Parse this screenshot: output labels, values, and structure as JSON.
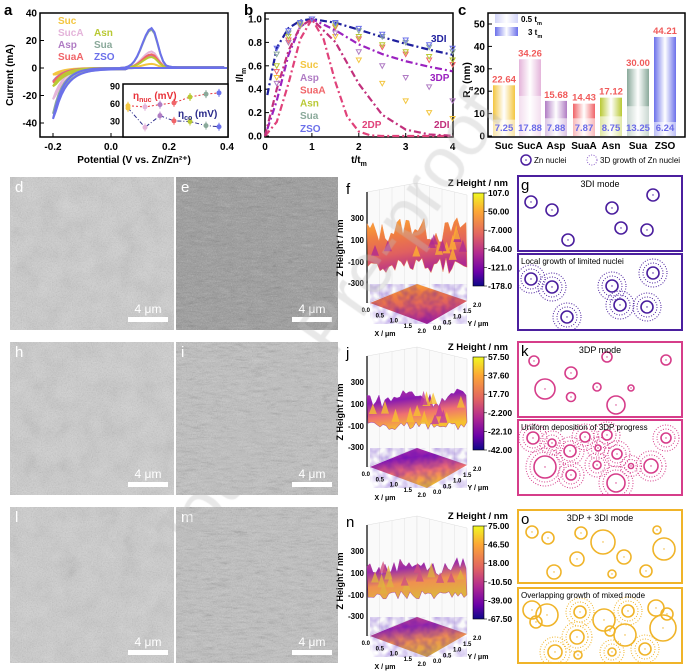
{
  "watermark": "Journal Pre-proof",
  "panel_labels": {
    "a": "a",
    "b": "b",
    "c": "c",
    "d": "d",
    "e": "e",
    "f": "f",
    "g": "g",
    "h": "h",
    "i": "i",
    "j": "j",
    "k": "k",
    "l": "l",
    "m": "m",
    "n": "n",
    "o": "o"
  },
  "colors": {
    "Suc": "#f3c640",
    "SucA": "#e4b4da",
    "Asp": "#b07cc4",
    "SuaA": "#f06468",
    "Asn": "#b9c934",
    "Sua": "#8aa99a",
    "ZSO": "#6b70ea",
    "value_top": "#f05a5a",
    "value_bottom": "#6a6ae8",
    "g": "#4b1f9e",
    "k": "#d63d8a",
    "o": "#f0b429"
  },
  "chart_data": [
    {
      "panel": "a",
      "type": "line",
      "xlabel": "Potential (V vs. Zn/Zn²⁺)",
      "ylabel": "Current (mA)",
      "xlim": [
        -0.25,
        0.4
      ],
      "ylim": [
        -50,
        40
      ],
      "xticks": [
        "-0.2",
        "0.0",
        "0.2",
        "0.4"
      ],
      "xtick_values": [
        -0.2,
        0,
        0.2,
        0.4
      ],
      "yticks": [
        "40",
        "20",
        "0",
        "-20",
        "-40"
      ],
      "ytick_values": [
        40,
        20,
        0,
        -20,
        -40
      ],
      "series": [
        {
          "name": "Suc",
          "anodic_peak_mA": 3,
          "current_at_minus_0_2V_mA": -5
        },
        {
          "name": "SucA",
          "anodic_peak_mA": 12,
          "current_at_minus_0_2V_mA": -24
        },
        {
          "name": "Asp",
          "anodic_peak_mA": 9,
          "current_at_minus_0_2V_mA": -10
        },
        {
          "name": "SuaA",
          "anodic_peak_mA": 10,
          "current_at_minus_0_2V_mA": -11
        },
        {
          "name": "Asn",
          "anodic_peak_mA": 8,
          "current_at_minus_0_2V_mA": -14
        },
        {
          "name": "Sua",
          "anodic_peak_mA": 28,
          "current_at_minus_0_2V_mA": -35
        },
        {
          "name": "ZSO",
          "anodic_peak_mA": 29,
          "current_at_minus_0_2V_mA": -39
        }
      ]
    },
    {
      "panel": "a-inset",
      "type": "line",
      "categories": [
        "Suc",
        "SucA",
        "Asp",
        "SuaA",
        "Asn",
        "Sua",
        "ZSO"
      ],
      "ylim": [
        15,
        95
      ],
      "yticks": [
        "30",
        "60",
        "90"
      ],
      "ytick_values": [
        30,
        60,
        90
      ],
      "series": [
        {
          "symbol": "η",
          "sub": "nuc",
          "unit": " (mV)",
          "color": "#e8323a",
          "values": [
            57,
            55,
            59,
            62,
            72,
            77,
            79
          ]
        },
        {
          "symbol": "η",
          "sub": "co",
          "unit": " (mV)",
          "color": "#2a2a8a",
          "values": [
            53,
            20,
            40,
            31,
            30,
            23,
            21
          ]
        }
      ]
    },
    {
      "panel": "b",
      "type": "line",
      "xlabel": "t/t",
      "xlabel_sub": "m",
      "ylabel": "I/I",
      "ylabel_sub": "m",
      "xlim": [
        0,
        4
      ],
      "ylim": [
        0,
        1.05
      ],
      "xticks": [
        "0",
        "1",
        "2",
        "3",
        "4"
      ],
      "xtick_values": [
        0,
        1,
        2,
        3,
        4
      ],
      "yticks": [
        "0.0",
        "0.2",
        "0.4",
        "0.6",
        "0.8",
        "1.0"
      ],
      "ytick_values": [
        0,
        0.2,
        0.4,
        0.6,
        0.8,
        1.0
      ],
      "models": [
        {
          "name": "3DI",
          "color": "#1f1f9e",
          "x": [
            0.05,
            0.25,
            0.5,
            0.75,
            1,
            1.5,
            2,
            2.5,
            3,
            3.5,
            4
          ],
          "y": [
            0.35,
            0.754,
            0.922,
            0.985,
            1,
            0.968,
            0.909,
            0.846,
            0.788,
            0.738,
            0.694
          ]
        },
        {
          "name": "3DP",
          "color": "#9b22c0",
          "x": [
            0.05,
            0.25,
            0.5,
            0.75,
            1,
            1.5,
            2,
            2.5,
            3,
            3.5,
            4
          ],
          "y": [
            0.06,
            0.301,
            0.692,
            0.934,
            1,
            0.904,
            0.783,
            0.7,
            0.639,
            0.592,
            0.553
          ]
        },
        {
          "name": "2DP",
          "color": "#e0427a",
          "x": [
            0,
            0.25,
            0.5,
            0.75,
            1,
            1.25,
            1.5,
            1.75,
            2,
            2.25,
            2.5,
            4
          ],
          "y": [
            0,
            0.12,
            0.448,
            0.827,
            1,
            0.828,
            0.462,
            0.167,
            0.038,
            0.005,
            0,
            0
          ]
        },
        {
          "name": "2DI",
          "color": "#c2307c",
          "x": [
            0,
            0.25,
            0.5,
            0.75,
            1,
            1.5,
            2,
            2.5,
            3,
            3.5,
            4
          ],
          "y": [
            0,
            0.4,
            0.727,
            0.934,
            1,
            0.803,
            0.446,
            0.181,
            0.055,
            0.013,
            0.002
          ]
        }
      ],
      "series": [
        {
          "name": "Suc",
          "x": [
            0.25,
            0.5,
            0.75,
            1,
            1.5,
            2,
            2.5,
            3,
            3.5,
            4
          ],
          "y": [
            0.5,
            0.8,
            0.94,
            1,
            0.85,
            0.65,
            0.45,
            0.3,
            0.2,
            0.15
          ]
        },
        {
          "name": "Asp",
          "x": [
            0.25,
            0.5,
            0.75,
            1,
            1.5,
            2,
            2.5,
            3,
            3.5,
            4
          ],
          "y": [
            0.45,
            0.8,
            0.94,
            1,
            0.88,
            0.72,
            0.6,
            0.5,
            0.42,
            0.3
          ]
        },
        {
          "name": "SuaA",
          "x": [
            0.25,
            0.5,
            0.75,
            1,
            1.5,
            2,
            2.5,
            3,
            3.5,
            4
          ],
          "y": [
            0.55,
            0.82,
            0.95,
            1,
            0.93,
            0.83,
            0.76,
            0.7,
            0.65,
            0.61
          ]
        },
        {
          "name": "Asn",
          "x": [
            0.25,
            0.5,
            0.75,
            1,
            1.5,
            2,
            2.5,
            3,
            3.5,
            4
          ],
          "y": [
            0.6,
            0.85,
            0.95,
            1,
            0.94,
            0.85,
            0.78,
            0.72,
            0.68,
            0.65
          ]
        },
        {
          "name": "Sua",
          "x": [
            0.25,
            0.5,
            0.75,
            1,
            1.5,
            2,
            2.5,
            3,
            3.5,
            4
          ],
          "y": [
            0.7,
            0.88,
            0.96,
            1,
            0.96,
            0.9,
            0.85,
            0.8,
            0.76,
            0.72
          ]
        },
        {
          "name": "ZSO",
          "x": [
            0.25,
            0.5,
            0.75,
            1,
            1.5,
            2,
            2.5,
            3,
            3.5,
            4
          ],
          "y": [
            0.75,
            0.9,
            0.97,
            1,
            0.97,
            0.92,
            0.87,
            0.82,
            0.78,
            0.75
          ]
        }
      ]
    },
    {
      "panel": "c",
      "type": "bar",
      "ylabel": "R",
      "ylabel_sub": "a",
      "ylabel_unit": " (nm)",
      "ylim": [
        0,
        55
      ],
      "yticks": [
        "0",
        "10",
        "20",
        "30",
        "40",
        "50"
      ],
      "ytick_values": [
        0,
        10,
        20,
        30,
        40,
        50
      ],
      "categories": [
        "Suc",
        "SucA",
        "Asp",
        "SuaA",
        "Asn",
        "Sua",
        "ZSO"
      ],
      "legend": [
        {
          "label": "0.5 t",
          "sub": "m"
        },
        {
          "label": "3 t",
          "sub": "m"
        }
      ],
      "series": [
        {
          "name": "0.5 tm",
          "values": [
            7.25,
            17.88,
            7.88,
            7.87,
            8.75,
            13.25,
            6.24
          ],
          "labels": [
            "7.25",
            "17.88",
            "7.88",
            "7.87",
            "8.75",
            "13.25",
            "6.24"
          ]
        },
        {
          "name": "3 tm",
          "values": [
            22.64,
            34.26,
            15.68,
            14.43,
            17.12,
            30.0,
            44.21
          ],
          "labels": [
            "22.64",
            "34.26",
            "15.68",
            "14.43",
            "17.12",
            "30.00",
            "44.21"
          ]
        }
      ]
    }
  ],
  "sem_images": [
    {
      "label": "d",
      "scale_bar": "4 μm"
    },
    {
      "label": "e",
      "scale_bar": "4 μm"
    },
    {
      "label": "h",
      "scale_bar": "4 μm"
    },
    {
      "label": "i",
      "scale_bar": "4 μm"
    },
    {
      "label": "l",
      "scale_bar": "4 μm"
    },
    {
      "label": "m",
      "scale_bar": "4 μm"
    }
  ],
  "afm": [
    {
      "label": "f",
      "title": "Z Height / nm",
      "colorbar_ticks": [
        "107.0",
        "50.00",
        "-7.000",
        "-64.00",
        "-121.0",
        "-178.0"
      ],
      "z_label": "Z Height / nm",
      "z_ticks": [
        "300",
        "100",
        "-100",
        "-300"
      ],
      "x_label": "X / μm",
      "y_label": "Y / μm",
      "xy_ticks": [
        "0.0",
        "0.5",
        "1.0",
        "1.5",
        "2.0"
      ]
    },
    {
      "label": "j",
      "title": "Z Height / nm",
      "colorbar_ticks": [
        "57.50",
        "37.60",
        "17.70",
        "-2.200",
        "-22.10",
        "-42.00"
      ],
      "z_label": "Z Height / nm",
      "z_ticks": [
        "300",
        "100",
        "-100",
        "-300"
      ],
      "x_label": "X / μm",
      "y_label": "Y / μm",
      "xy_ticks": [
        "0.0",
        "0.5",
        "1.0",
        "1.5",
        "2.0"
      ]
    },
    {
      "label": "n",
      "title": "Z Height / nm",
      "colorbar_ticks": [
        "75.00",
        "46.50",
        "18.00",
        "-10.50",
        "-39.00",
        "-67.50"
      ],
      "z_label": "Z Height / nm",
      "z_ticks": [
        "300",
        "100",
        "-100",
        "-300"
      ],
      "x_label": "X / μm",
      "y_label": "Y / μm",
      "xy_ticks": [
        "0.0",
        "0.5",
        "1.0",
        "1.5",
        "2.0"
      ]
    }
  ],
  "schematic": {
    "legend": {
      "nuclei": "Zn nuclei",
      "growth": "3D growth of Zn nuclei"
    },
    "panels": [
      {
        "label": "g",
        "mode": "3DI mode",
        "caption": "Local growth of limited nuclei"
      },
      {
        "label": "k",
        "mode": "3DP mode",
        "caption": "Uniform deposition of 3DP progress"
      },
      {
        "label": "o",
        "mode": "3DP + 3DI mode",
        "caption": "Overlapping growth of mixed mode"
      }
    ]
  }
}
